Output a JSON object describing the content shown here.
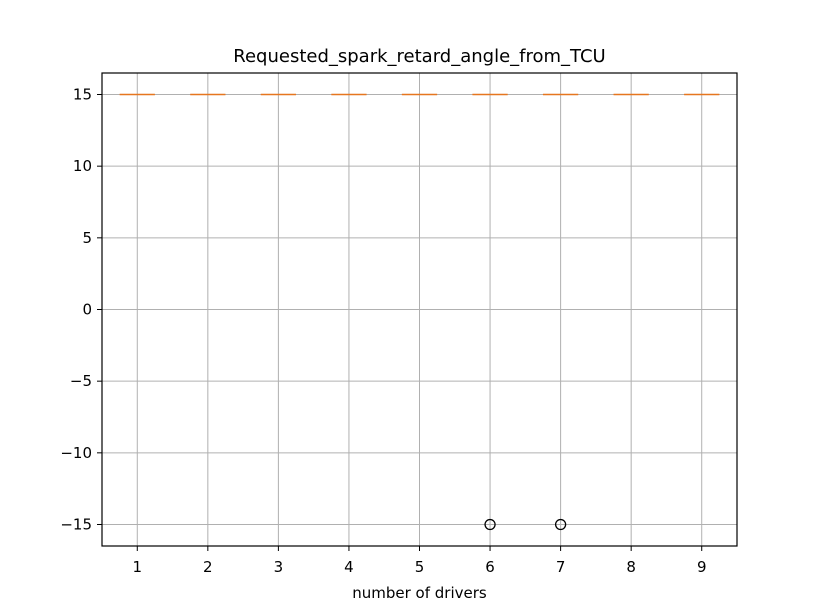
{
  "chart_data": {
    "type": "boxplot",
    "title": "Requested_spark_retard_angle_from_TCU",
    "xlabel": "number of drivers",
    "ylabel": "",
    "categories": [
      "1",
      "2",
      "3",
      "4",
      "5",
      "6",
      "7",
      "8",
      "9"
    ],
    "boxes": [
      {
        "category": "1",
        "q1": 15,
        "median": 15,
        "q3": 15,
        "whisker_low": 15,
        "whisker_high": 15,
        "outliers": []
      },
      {
        "category": "2",
        "q1": 15,
        "median": 15,
        "q3": 15,
        "whisker_low": 15,
        "whisker_high": 15,
        "outliers": []
      },
      {
        "category": "3",
        "q1": 15,
        "median": 15,
        "q3": 15,
        "whisker_low": 15,
        "whisker_high": 15,
        "outliers": []
      },
      {
        "category": "4",
        "q1": 15,
        "median": 15,
        "q3": 15,
        "whisker_low": 15,
        "whisker_high": 15,
        "outliers": []
      },
      {
        "category": "5",
        "q1": 15,
        "median": 15,
        "q3": 15,
        "whisker_low": 15,
        "whisker_high": 15,
        "outliers": []
      },
      {
        "category": "6",
        "q1": 15,
        "median": 15,
        "q3": 15,
        "whisker_low": 15,
        "whisker_high": 15,
        "outliers": [
          -15
        ]
      },
      {
        "category": "7",
        "q1": 15,
        "median": 15,
        "q3": 15,
        "whisker_low": 15,
        "whisker_high": 15,
        "outliers": [
          -15
        ]
      },
      {
        "category": "8",
        "q1": 15,
        "median": 15,
        "q3": 15,
        "whisker_low": 15,
        "whisker_high": 15,
        "outliers": []
      },
      {
        "category": "9",
        "q1": 15,
        "median": 15,
        "q3": 15,
        "whisker_low": 15,
        "whisker_high": 15,
        "outliers": []
      }
    ],
    "xlim": [
      0.5,
      9.5
    ],
    "ylim": [
      -16.5,
      16.5
    ],
    "yticks": [
      -15,
      -10,
      -5,
      0,
      5,
      10,
      15
    ],
    "ytick_labels": [
      "−15",
      "−10",
      "−5",
      "0",
      "5",
      "10",
      "15"
    ],
    "grid": true,
    "colors": {
      "median": "#e6761f",
      "grid": "#b0b0b0",
      "axes": "#000000",
      "outlier": "#000000"
    }
  }
}
